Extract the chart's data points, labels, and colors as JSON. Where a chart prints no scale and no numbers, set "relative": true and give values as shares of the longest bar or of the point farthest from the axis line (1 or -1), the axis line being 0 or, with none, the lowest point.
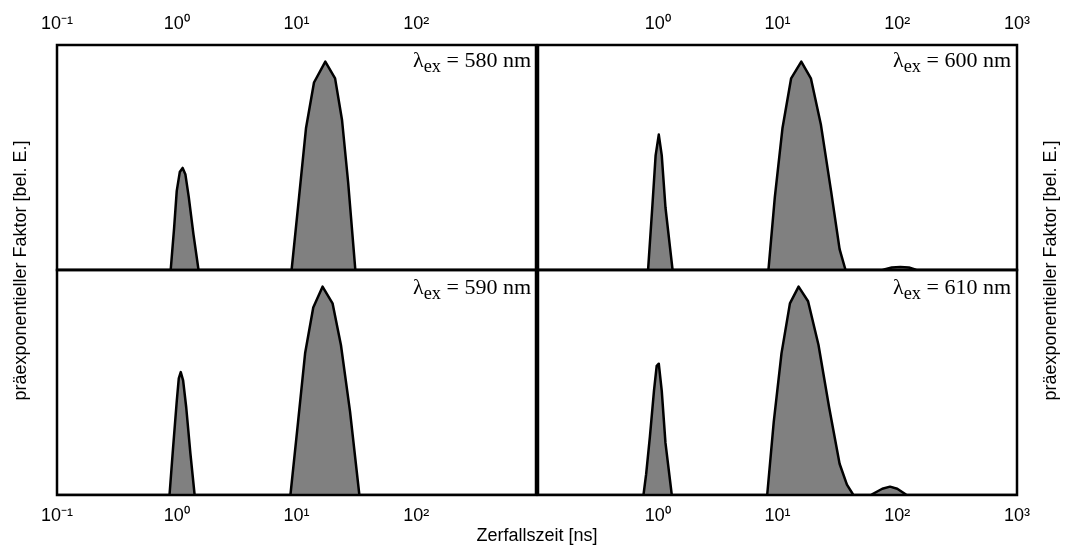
{
  "chart_data": [
    {
      "type": "area",
      "ylabel": "präexponentieller Faktor [bel. E.]",
      "relative": true,
      "tick_labels": "x",
      "xlim": [
        0.1,
        1000
      ],
      "xticks": [
        {
          "value": 0.1,
          "label": "10⁻¹"
        },
        {
          "value": 1,
          "label": "10⁰"
        },
        {
          "value": 10,
          "label": "10¹"
        },
        {
          "value": 100,
          "label": "10²"
        },
        {
          "value": 1000,
          "label": null
        }
      ],
      "log": "x",
      "annotations": [
        "λ$_{ex}$ = 580 nm"
      ],
      "series": [
        {
          "color": "#808080",
          "x": [
            0.1,
            0.89,
            0.95,
            1.0,
            1.06,
            1.12,
            1.18,
            1.26,
            1.38,
            1.52,
            9.1,
            10.5,
            12,
            14,
            17.4,
            21,
            24,
            27,
            31,
            1000
          ],
          "values": [
            0,
            0,
            0.2,
            0.38,
            0.47,
            0.49,
            0.46,
            0.35,
            0.17,
            0,
            0,
            0.35,
            0.68,
            0.9,
            1.0,
            0.92,
            0.72,
            0.42,
            0,
            0
          ]
        }
      ]
    },
    {
      "type": "area",
      "ylabel": "präexponentieller Faktor [bel. E.]",
      "relative": true,
      "tick_labels": "x",
      "xlim": [
        0.1,
        1000
      ],
      "xticks": [
        {
          "value": 0.1,
          "label": null
        },
        {
          "value": 1,
          "label": "10⁰"
        },
        {
          "value": 10,
          "label": "10¹"
        },
        {
          "value": 100,
          "label": "10²"
        },
        {
          "value": 1000,
          "label": "10³"
        }
      ],
      "log": "x",
      "annotations": [
        "λ$_{ex}$ = 600 nm"
      ],
      "series": [
        {
          "color": "#808080",
          "x": [
            0.1,
            0.83,
            0.9,
            0.96,
            1.02,
            1.08,
            1.16,
            1.33,
            8.4,
            9.5,
            11,
            13,
            15.8,
            19,
            23,
            28,
            33,
            37,
            75,
            90,
            106,
            125,
            145,
            1000
          ],
          "values": [
            0,
            0,
            0.3,
            0.55,
            0.65,
            0.55,
            0.3,
            0,
            0,
            0.35,
            0.68,
            0.92,
            1.0,
            0.92,
            0.7,
            0.38,
            0.1,
            0,
            0,
            0.012,
            0.015,
            0.012,
            0,
            0
          ]
        }
      ]
    },
    {
      "type": "area",
      "xlabel": "Zerfallszeit [ns]",
      "relative": true,
      "tick_labels": "x",
      "xlim": [
        0.1,
        1000
      ],
      "xticks": [
        {
          "value": 0.1,
          "label": "10⁻¹"
        },
        {
          "value": 1,
          "label": "10⁰"
        },
        {
          "value": 10,
          "label": "10¹"
        },
        {
          "value": 100,
          "label": "10²"
        },
        {
          "value": 1000,
          "label": null
        }
      ],
      "log": "x",
      "annotations": [
        "λ$_{ex}$ = 590 nm"
      ],
      "series": [
        {
          "color": "#808080",
          "x": [
            0.1,
            0.87,
            0.93,
            1.0,
            1.04,
            1.08,
            1.13,
            1.2,
            1.3,
            1.41,
            8.9,
            10.3,
            11.8,
            13.8,
            16.5,
            20,
            23.5,
            28,
            33.5,
            1000
          ],
          "values": [
            0,
            0,
            0.22,
            0.45,
            0.56,
            0.59,
            0.55,
            0.42,
            0.2,
            0,
            0,
            0.35,
            0.68,
            0.9,
            1.0,
            0.92,
            0.72,
            0.4,
            0,
            0
          ]
        }
      ]
    },
    {
      "type": "area",
      "relative": true,
      "tick_labels": "x",
      "xlim": [
        0.1,
        1000
      ],
      "xticks": [
        {
          "value": 0.1,
          "label": null
        },
        {
          "value": 1,
          "label": "10⁰"
        },
        {
          "value": 10,
          "label": "10¹"
        },
        {
          "value": 100,
          "label": "10²"
        },
        {
          "value": 1000,
          "label": "10³"
        }
      ],
      "log": "x",
      "annotations": [
        "λ$_{ex}$ = 610 nm"
      ],
      "series": [
        {
          "color": "#808080",
          "x": [
            0.1,
            0.76,
            0.8,
            0.86,
            0.93,
            0.98,
            1.02,
            1.08,
            1.16,
            1.31,
            8.2,
            9.3,
            10.8,
            12.7,
            15,
            18,
            22,
            27,
            33,
            38,
            43,
            60,
            75,
            87,
            100,
            120,
            1000
          ],
          "values": [
            0,
            0,
            0.1,
            0.28,
            0.5,
            0.62,
            0.63,
            0.5,
            0.25,
            0,
            0,
            0.35,
            0.68,
            0.92,
            1.0,
            0.93,
            0.72,
            0.42,
            0.15,
            0.05,
            0,
            0,
            0.03,
            0.04,
            0.03,
            0,
            0
          ]
        }
      ]
    }
  ]
}
